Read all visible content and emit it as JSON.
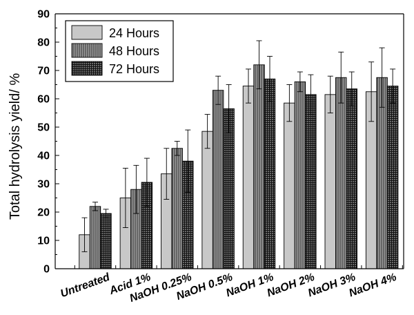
{
  "chart_data": {
    "type": "bar",
    "ylabel": "Total hydrolysis yield/ %",
    "xlabel": "",
    "ylim": [
      0,
      90
    ],
    "yticks": [
      0,
      10,
      20,
      30,
      40,
      50,
      60,
      70,
      80,
      90
    ],
    "categories": [
      "Untreated",
      "Acid 1%",
      "NaOH 0.25%",
      "NaOH 0.5%",
      "NaOH 1%",
      "NaOH 2%",
      "NaOH 3%",
      "NaOH 4%"
    ],
    "series": [
      {
        "name": "24 Hours",
        "color": "#c8c8c8",
        "pattern": "solid",
        "values": [
          12,
          25,
          33.5,
          48.5,
          64.5,
          58.5,
          61.5,
          62.5
        ],
        "errors": [
          6,
          10.5,
          9,
          6,
          6,
          6.5,
          6.5,
          10.5
        ]
      },
      {
        "name": "48 Hours",
        "color": "#8c8c8c",
        "pattern": "vertical-lines",
        "values": [
          22,
          28,
          42.5,
          63,
          72,
          66,
          67.5,
          67.5
        ],
        "errors": [
          1.5,
          8.5,
          2.5,
          5,
          8.5,
          3.5,
          9,
          10.5
        ]
      },
      {
        "name": "72 Hours",
        "color": "#3c3c3c",
        "pattern": "grid",
        "values": [
          19.5,
          30.5,
          38,
          56.5,
          67,
          61.5,
          63.5,
          64.5
        ],
        "errors": [
          1.5,
          8.5,
          11,
          8.5,
          8,
          7,
          6,
          6
        ]
      }
    ],
    "legend_position": "top-left",
    "grid": false
  }
}
